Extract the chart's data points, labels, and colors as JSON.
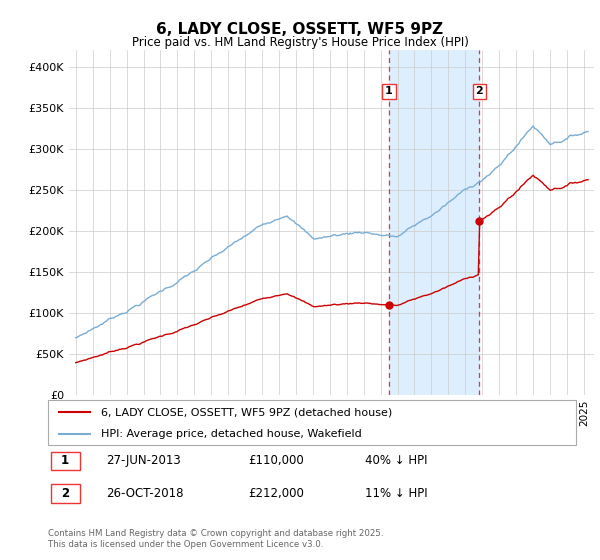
{
  "title": "6, LADY CLOSE, OSSETT, WF5 9PZ",
  "subtitle": "Price paid vs. HM Land Registry's House Price Index (HPI)",
  "legend_entry1": "6, LADY CLOSE, OSSETT, WF5 9PZ (detached house)",
  "legend_entry2": "HPI: Average price, detached house, Wakefield",
  "sale1_label": "1",
  "sale1_date": "27-JUN-2013",
  "sale1_price": "£110,000",
  "sale1_hpi": "40% ↓ HPI",
  "sale2_label": "2",
  "sale2_date": "26-OCT-2018",
  "sale2_price": "£212,000",
  "sale2_hpi": "11% ↓ HPI",
  "footer": "Contains HM Land Registry data © Crown copyright and database right 2025.\nThis data is licensed under the Open Government Licence v3.0.",
  "hpi_color": "#7aadd4",
  "price_color": "#cc0000",
  "vline_color": "#ee3333",
  "shade_color": "#ddeeff",
  "ylim_min": 0,
  "ylim_max": 420000,
  "yticks": [
    0,
    50000,
    100000,
    150000,
    200000,
    250000,
    300000,
    350000,
    400000
  ],
  "sale1_year": 2013.49,
  "sale2_year": 2018.82,
  "sale1_price_val": 110000,
  "sale2_price_val": 212000
}
